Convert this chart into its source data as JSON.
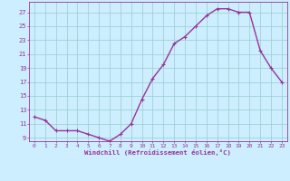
{
  "x": [
    0,
    1,
    2,
    3,
    4,
    5,
    6,
    7,
    8,
    9,
    10,
    11,
    12,
    13,
    14,
    15,
    16,
    17,
    18,
    19,
    20,
    21,
    22,
    23
  ],
  "y": [
    12.0,
    11.5,
    10.0,
    10.0,
    10.0,
    9.5,
    9.0,
    8.5,
    9.5,
    11.0,
    14.5,
    17.5,
    19.5,
    22.5,
    23.5,
    25.0,
    26.5,
    27.5,
    27.5,
    27.0,
    27.0,
    21.5,
    19.0,
    17.0
  ],
  "line_color": "#993399",
  "marker": "+",
  "marker_size": 3,
  "marker_linewidth": 0.8,
  "bg_color": "#cceeff",
  "grid_color": "#99cccc",
  "xlabel": "Windchill (Refroidissement éolien,°C)",
  "xlabel_color": "#993399",
  "tick_color": "#993399",
  "label_color": "#993399",
  "xlim": [
    -0.5,
    23.5
  ],
  "ylim": [
    8.5,
    28.5
  ],
  "yticks": [
    9,
    11,
    13,
    15,
    17,
    19,
    21,
    23,
    25,
    27
  ],
  "xticks": [
    0,
    1,
    2,
    3,
    4,
    5,
    6,
    7,
    8,
    9,
    10,
    11,
    12,
    13,
    14,
    15,
    16,
    17,
    18,
    19,
    20,
    21,
    22,
    23
  ],
  "line_width": 1.0,
  "spine_color": "#993399"
}
